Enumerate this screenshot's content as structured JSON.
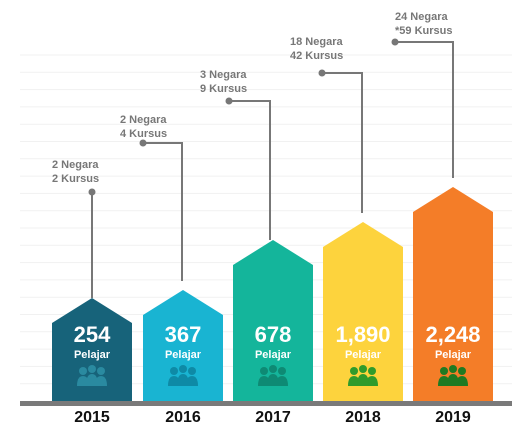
{
  "items": [
    {
      "year": "2015",
      "count": "254",
      "unit": "Pelajar",
      "note": [
        "2 Negara",
        "2 Kursus"
      ]
    },
    {
      "year": "2016",
      "count": "367",
      "unit": "Pelajar",
      "note": [
        "2 Negara",
        "4 Kursus"
      ]
    },
    {
      "year": "2017",
      "count": "678",
      "unit": "Pelajar",
      "note": [
        "3 Negara",
        "9 Kursus"
      ]
    },
    {
      "year": "2018",
      "count": "1,890",
      "unit": "Pelajar",
      "note": [
        "18 Negara",
        "42 Kursus"
      ]
    },
    {
      "year": "2019",
      "count": "2,248",
      "unit": "Pelajar",
      "note": [
        "24 Negara",
        "*59 Kursus"
      ]
    }
  ]
}
